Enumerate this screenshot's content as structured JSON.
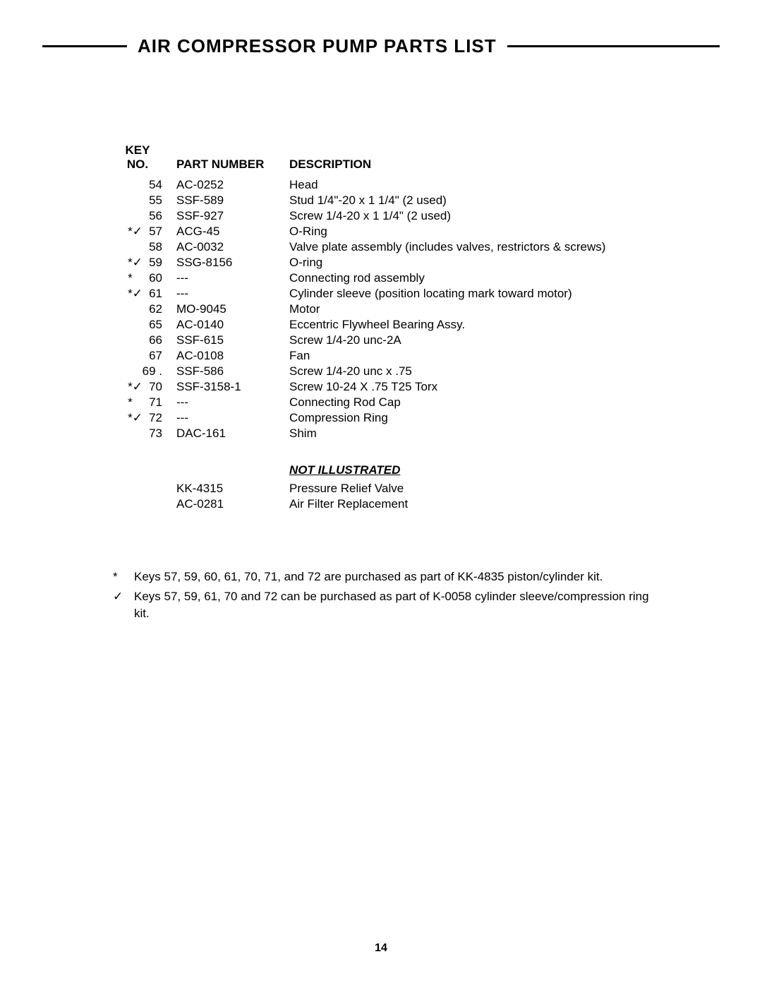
{
  "title": "AIR COMPRESSOR PUMP PARTS LIST",
  "headers": {
    "key_line1": "KEY",
    "key_line2": "NO.",
    "part_number": "PART NUMBER",
    "description": "DESCRIPTION"
  },
  "rows": [
    {
      "marker": "",
      "key": "54",
      "part": "AC-0252",
      "desc": "Head"
    },
    {
      "marker": "",
      "key": "55",
      "part": "SSF-589",
      "desc": "Stud 1/4\"-20 x 1 1/4\" (2 used)"
    },
    {
      "marker": "",
      "key": "56",
      "part": "SSF-927",
      "desc": "Screw 1/4-20 x 1 1/4\" (2 used)"
    },
    {
      "marker": "*✓",
      "key": "57",
      "part": "ACG-45",
      "desc": "O-Ring"
    },
    {
      "marker": "",
      "key": "58",
      "part": "AC-0032",
      "desc": "Valve plate assembly (includes valves, restrictors & screws)"
    },
    {
      "marker": "*✓",
      "key": "59",
      "part": "SSG-8156",
      "desc": "O-ring"
    },
    {
      "marker": "*",
      "key": "60",
      "part": "---",
      "desc": "Connecting rod assembly"
    },
    {
      "marker": "*✓",
      "key": "61",
      "part": "---",
      "desc": "Cylinder sleeve (position locating mark toward motor)"
    },
    {
      "marker": "",
      "key": "62",
      "part": "MO-9045",
      "desc": "Motor"
    },
    {
      "marker": "",
      "key": "65",
      "part": "AC-0140",
      "desc": "Eccentric Flywheel Bearing Assy."
    },
    {
      "marker": "",
      "key": "66",
      "part": "SSF-615",
      "desc": "Screw  1/4-20 unc-2A"
    },
    {
      "marker": "",
      "key": "67",
      "part": "AC-0108",
      "desc": "Fan"
    },
    {
      "marker": "",
      "key": "69 .",
      "part": "SSF-586",
      "desc": "Screw 1/4-20 unc x .75"
    },
    {
      "marker": "*✓",
      "key": "70",
      "part": "SSF-3158-1",
      "desc": "Screw 10-24 X .75 T25 Torx"
    },
    {
      "marker": "*",
      "key": "71",
      "part": "---",
      "desc": "Connecting Rod Cap"
    },
    {
      "marker": "*✓",
      "key": "72",
      "part": "---",
      "desc": "Compression Ring"
    },
    {
      "marker": "",
      "key": "73",
      "part": "DAC-161",
      "desc": "Shim"
    }
  ],
  "not_illustrated": {
    "heading": "NOT ILLUSTRATED",
    "items": [
      {
        "part": "KK-4315",
        "desc": "Pressure Relief Valve"
      },
      {
        "part": "AC-0281",
        "desc": "Air Filter Replacement"
      }
    ]
  },
  "notes": [
    {
      "marker": "*",
      "text": "Keys 57, 59, 60, 61, 70, 71, and 72 are purchased as part of KK-4835 piston/cylinder kit."
    },
    {
      "marker": "✓",
      "text": "Keys 57, 59, 61, 70 and 72 can be purchased as part of K-0058 cylinder sleeve/compression ring kit."
    }
  ],
  "page_number": "14"
}
